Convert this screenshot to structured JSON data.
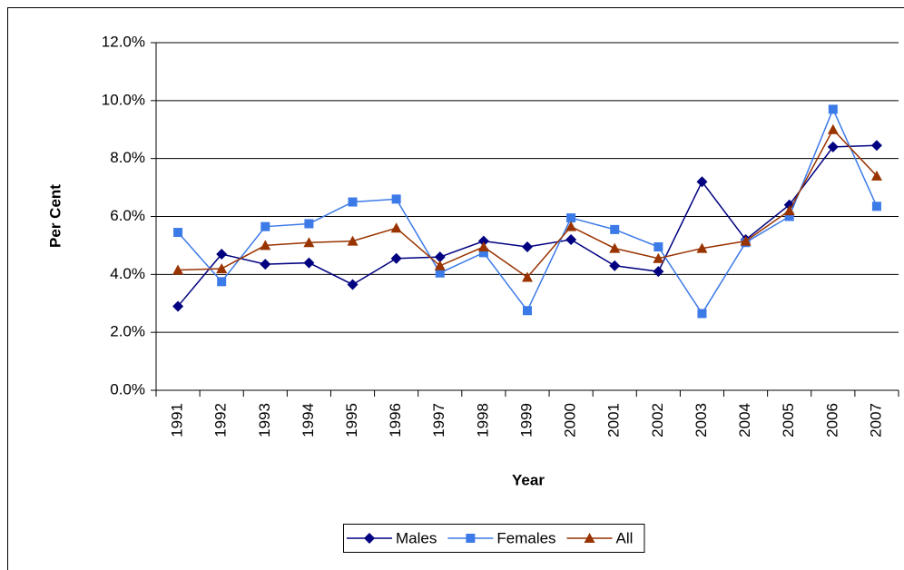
{
  "chart_data": {
    "type": "line",
    "x_label": "Year",
    "y_label": "Per Cent",
    "categories": [
      "1991",
      "1992",
      "1993",
      "1994",
      "1995",
      "1996",
      "1997",
      "1998",
      "1999",
      "2000",
      "2001",
      "2002",
      "2003",
      "2004",
      "2005",
      "2006",
      "2007"
    ],
    "series": [
      {
        "name": "Males",
        "color": "#000080",
        "marker": "diamond",
        "values": [
          2.9,
          4.7,
          4.35,
          4.4,
          3.65,
          4.55,
          4.6,
          5.15,
          4.95,
          5.2,
          4.3,
          4.1,
          7.2,
          5.2,
          6.4,
          8.4,
          8.45
        ]
      },
      {
        "name": "Females",
        "color": "#3c7ae8",
        "marker": "square",
        "values": [
          5.45,
          3.75,
          5.65,
          5.75,
          6.5,
          6.6,
          4.05,
          4.75,
          2.75,
          5.95,
          5.55,
          4.95,
          2.65,
          5.1,
          6.0,
          9.7,
          6.35
        ]
      },
      {
        "name": "All",
        "color": "#993300",
        "marker": "triangle",
        "values": [
          4.15,
          4.2,
          5.0,
          5.1,
          5.15,
          5.6,
          4.3,
          4.95,
          3.9,
          5.65,
          4.9,
          4.55,
          4.9,
          5.15,
          6.2,
          9.0,
          7.4
        ]
      }
    ],
    "ylim": [
      0,
      12
    ],
    "yticks": [
      {
        "value": 0,
        "label": "0.0%"
      },
      {
        "value": 2,
        "label": "2.0%"
      },
      {
        "value": 4,
        "label": "4.0%"
      },
      {
        "value": 6,
        "label": "6.0%"
      },
      {
        "value": 8,
        "label": "8.0%"
      },
      {
        "value": 10,
        "label": "10.0%"
      },
      {
        "value": 12,
        "label": "12.0%"
      }
    ],
    "grid": true,
    "legend": "bottom"
  }
}
